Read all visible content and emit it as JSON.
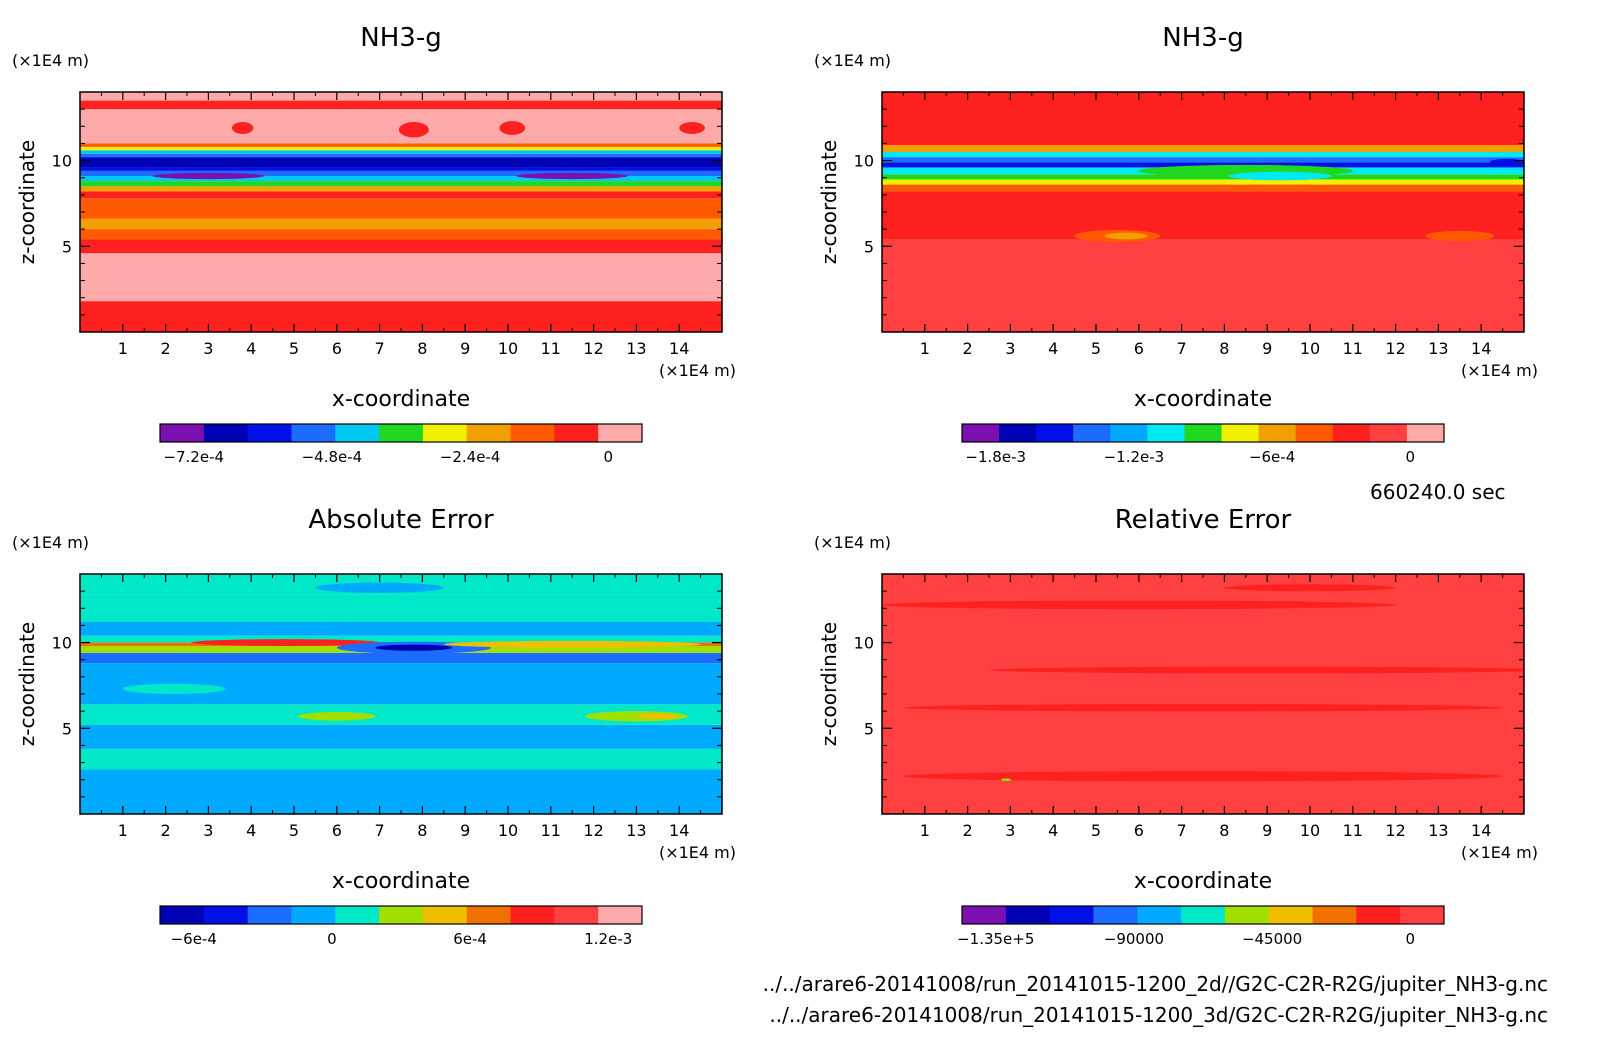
{
  "chart_data": [
    {
      "type": "heatmap",
      "title": "NH3-g",
      "xlabel": "x-coordinate",
      "ylabel": "z-coordinate",
      "x_unit": "(×1E4 m)",
      "z_unit": "(×1E4 m)",
      "xlim": [
        0,
        15
      ],
      "ylim": [
        0,
        14
      ],
      "x_ticks": [
        "1",
        "2",
        "3",
        "4",
        "5",
        "6",
        "7",
        "8",
        "9",
        "10",
        "11",
        "12",
        "13",
        "14"
      ],
      "z_ticks": [
        "5",
        "10"
      ],
      "colorbar_labels": [
        "−7.2e-4",
        "−4.8e-4",
        "−2.4e-4",
        "0"
      ],
      "colorbar_colors": [
        "#7b0fb0",
        "#0000b4",
        "#0010e6",
        "#1c6cff",
        "#00c8f0",
        "#20d820",
        "#f0f000",
        "#f0a000",
        "#ff5a00",
        "#ff2020",
        "#ffaaaa"
      ],
      "bands": [
        {
          "z": [
            0,
            1.8
          ],
          "color": "#ff2020"
        },
        {
          "z": [
            1.8,
            4.6
          ],
          "color": "#ffaaaa"
        },
        {
          "z": [
            4.6,
            5.4
          ],
          "color": "#ff2020"
        },
        {
          "z": [
            5.4,
            6.0
          ],
          "color": "#ff5a00"
        },
        {
          "z": [
            6.0,
            6.6
          ],
          "color": "#f0a000"
        },
        {
          "z": [
            6.6,
            7.8
          ],
          "color": "#ff5a00"
        },
        {
          "z": [
            7.8,
            8.2
          ],
          "color": "#ff2020"
        },
        {
          "z": [
            8.2,
            8.5
          ],
          "color": "#f0a000"
        },
        {
          "z": [
            8.5,
            8.8
          ],
          "color": "#20d820"
        },
        {
          "z": [
            8.8,
            9.1
          ],
          "color": "#00c8f0"
        },
        {
          "z": [
            9.1,
            9.4
          ],
          "color": "#1c6cff"
        },
        {
          "z": [
            9.4,
            9.6
          ],
          "color": "#0010e6"
        },
        {
          "z": [
            9.6,
            10.2
          ],
          "color": "#0000b4"
        },
        {
          "z": [
            10.2,
            10.4
          ],
          "color": "#1c6cff"
        },
        {
          "z": [
            10.4,
            10.6
          ],
          "color": "#00c8f0"
        },
        {
          "z": [
            10.6,
            10.8
          ],
          "color": "#f0f000"
        },
        {
          "z": [
            10.8,
            11.0
          ],
          "color": "#ff5a00"
        },
        {
          "z": [
            11.0,
            13.0
          ],
          "color": "#ffaaaa"
        },
        {
          "z": [
            13.0,
            13.5
          ],
          "color": "#ff2020"
        },
        {
          "z": [
            13.5,
            14.0
          ],
          "color": "#ffaaaa"
        }
      ],
      "blobs": [
        {
          "x": 3.8,
          "z": 11.9,
          "rx": 0.25,
          "rz": 0.35,
          "color": "#ff2020"
        },
        {
          "x": 7.8,
          "z": 11.8,
          "rx": 0.35,
          "rz": 0.45,
          "color": "#ff2020"
        },
        {
          "x": 10.1,
          "z": 11.9,
          "rx": 0.3,
          "rz": 0.4,
          "color": "#ff2020"
        },
        {
          "x": 14.3,
          "z": 11.9,
          "rx": 0.3,
          "rz": 0.35,
          "color": "#ff2020"
        },
        {
          "x": 3.0,
          "z": 9.1,
          "rx": 1.3,
          "rz": 0.18,
          "color": "#7b0fb0"
        },
        {
          "x": 11.5,
          "z": 9.1,
          "rx": 1.3,
          "rz": 0.18,
          "color": "#7b0fb0"
        }
      ]
    },
    {
      "type": "heatmap",
      "title": "NH3-g",
      "xlabel": "x-coordinate",
      "ylabel": "z-coordinate",
      "x_unit": "(×1E4 m)",
      "z_unit": "(×1E4 m)",
      "xlim": [
        0,
        15
      ],
      "ylim": [
        0,
        14
      ],
      "x_ticks": [
        "1",
        "2",
        "3",
        "4",
        "5",
        "6",
        "7",
        "8",
        "9",
        "10",
        "11",
        "12",
        "13",
        "14"
      ],
      "z_ticks": [
        "5",
        "10"
      ],
      "colorbar_labels": [
        "−1.8e-3",
        "−1.2e-3",
        "−6e-4",
        "0"
      ],
      "colorbar_colors": [
        "#7b0fb0",
        "#0000b4",
        "#0010e6",
        "#1c6cff",
        "#00aaff",
        "#00e8f0",
        "#20d820",
        "#f0f000",
        "#f0a000",
        "#ff5a00",
        "#ff2020",
        "#ff4040",
        "#ffaaaa"
      ],
      "bands": [
        {
          "z": [
            0,
            5.4
          ],
          "color": "#ff4040"
        },
        {
          "z": [
            5.4,
            8.2
          ],
          "color": "#ff2020"
        },
        {
          "z": [
            8.2,
            8.6
          ],
          "color": "#ff5a00"
        },
        {
          "z": [
            8.6,
            8.9
          ],
          "color": "#f0f000"
        },
        {
          "z": [
            8.9,
            9.2
          ],
          "color": "#20d820"
        },
        {
          "z": [
            9.2,
            9.6
          ],
          "color": "#00e8f0"
        },
        {
          "z": [
            9.6,
            9.9
          ],
          "color": "#0010e6"
        },
        {
          "z": [
            9.9,
            10.2
          ],
          "color": "#1c6cff"
        },
        {
          "z": [
            10.2,
            10.5
          ],
          "color": "#00e8f0"
        },
        {
          "z": [
            10.5,
            10.9
          ],
          "color": "#f0a000"
        },
        {
          "z": [
            10.9,
            14.0
          ],
          "color": "#ff2020"
        }
      ],
      "blobs": [
        {
          "x": 5.5,
          "z": 5.6,
          "rx": 1.0,
          "rz": 0.35,
          "color": "#ff5a00"
        },
        {
          "x": 5.7,
          "z": 5.6,
          "rx": 0.5,
          "rz": 0.2,
          "color": "#f0a000"
        },
        {
          "x": 13.5,
          "z": 5.6,
          "rx": 0.8,
          "rz": 0.3,
          "color": "#ff5a00"
        },
        {
          "x": 8.5,
          "z": 9.4,
          "rx": 2.5,
          "rz": 0.35,
          "color": "#20d820"
        },
        {
          "x": 9.3,
          "z": 9.1,
          "rx": 1.2,
          "rz": 0.25,
          "color": "#00e8f0"
        },
        {
          "x": 14.6,
          "z": 9.9,
          "rx": 0.4,
          "rz": 0.2,
          "color": "#0010e6"
        }
      ]
    },
    {
      "type": "heatmap",
      "title": "Absolute Error",
      "xlabel": "x-coordinate",
      "ylabel": "z-coordinate",
      "x_unit": "(×1E4 m)",
      "z_unit": "(×1E4 m)",
      "xlim": [
        0,
        15
      ],
      "ylim": [
        0,
        14
      ],
      "x_ticks": [
        "1",
        "2",
        "3",
        "4",
        "5",
        "6",
        "7",
        "8",
        "9",
        "10",
        "11",
        "12",
        "13",
        "14"
      ],
      "z_ticks": [
        "5",
        "10"
      ],
      "colorbar_labels": [
        "−6e-4",
        "0",
        "6e-4",
        "1.2e-3"
      ],
      "colorbar_colors": [
        "#0000b4",
        "#0010e6",
        "#1c6cff",
        "#00aaff",
        "#00e8c8",
        "#a0e000",
        "#f0c000",
        "#f07000",
        "#ff2020",
        "#ff4040",
        "#ffaaaa"
      ],
      "bands": [
        {
          "z": [
            0,
            2.6
          ],
          "color": "#00aaff"
        },
        {
          "z": [
            2.6,
            3.8
          ],
          "color": "#00e8c8"
        },
        {
          "z": [
            3.8,
            5.2
          ],
          "color": "#00aaff"
        },
        {
          "z": [
            5.2,
            6.4
          ],
          "color": "#00e8c8"
        },
        {
          "z": [
            6.4,
            8.8
          ],
          "color": "#00aaff"
        },
        {
          "z": [
            8.8,
            9.4
          ],
          "color": "#1c6cff"
        },
        {
          "z": [
            9.4,
            9.8
          ],
          "color": "#a0e000"
        },
        {
          "z": [
            9.8,
            10.0
          ],
          "color": "#f07000"
        },
        {
          "z": [
            10.0,
            10.4
          ],
          "color": "#00e8c8"
        },
        {
          "z": [
            10.4,
            11.2
          ],
          "color": "#00aaff"
        },
        {
          "z": [
            11.2,
            12.8
          ],
          "color": "#00e8c8"
        },
        {
          "z": [
            12.8,
            14.0
          ],
          "color": "#00e8c8"
        }
      ],
      "blobs": [
        {
          "x": 4.8,
          "z": 10.0,
          "rx": 2.2,
          "rz": 0.2,
          "color": "#ff2020"
        },
        {
          "x": 7.8,
          "z": 9.7,
          "rx": 1.8,
          "rz": 0.35,
          "color": "#1c6cff"
        },
        {
          "x": 7.8,
          "z": 9.7,
          "rx": 0.9,
          "rz": 0.18,
          "color": "#0000b4"
        },
        {
          "x": 11.5,
          "z": 9.9,
          "rx": 3.0,
          "rz": 0.2,
          "color": "#f0c000"
        },
        {
          "x": 6.0,
          "z": 5.7,
          "rx": 0.9,
          "rz": 0.25,
          "color": "#a0e000"
        },
        {
          "x": 13.0,
          "z": 5.7,
          "rx": 1.2,
          "rz": 0.3,
          "color": "#a0e000"
        },
        {
          "x": 13.5,
          "z": 5.7,
          "rx": 0.5,
          "rz": 0.15,
          "color": "#f0c000"
        },
        {
          "x": 2.2,
          "z": 7.3,
          "rx": 1.2,
          "rz": 0.3,
          "color": "#00e8c8"
        },
        {
          "x": 7.0,
          "z": 13.2,
          "rx": 1.5,
          "rz": 0.3,
          "color": "#00aaff"
        }
      ]
    },
    {
      "type": "heatmap",
      "title": "Relative Error",
      "xlabel": "x-coordinate",
      "ylabel": "z-coordinate",
      "x_unit": "(×1E4 m)",
      "z_unit": "(×1E4 m)",
      "xlim": [
        0,
        15
      ],
      "ylim": [
        0,
        14
      ],
      "x_ticks": [
        "1",
        "2",
        "3",
        "4",
        "5",
        "6",
        "7",
        "8",
        "9",
        "10",
        "11",
        "12",
        "13",
        "14"
      ],
      "z_ticks": [
        "5",
        "10"
      ],
      "colorbar_labels": [
        "−1.35e+5",
        "−90000",
        "−45000",
        "0"
      ],
      "colorbar_colors": [
        "#7b0fb0",
        "#0000b4",
        "#0010e6",
        "#1c6cff",
        "#00aaff",
        "#00e8c8",
        "#a0e000",
        "#f0c000",
        "#f07000",
        "#ff2020",
        "#ff4040"
      ],
      "bands": [
        {
          "z": [
            0,
            14.0
          ],
          "color": "#ff4040"
        }
      ],
      "blobs": [
        {
          "x": 6.0,
          "z": 12.2,
          "rx": 6.0,
          "rz": 0.25,
          "color": "#ff2020"
        },
        {
          "x": 9.0,
          "z": 8.4,
          "rx": 6.5,
          "rz": 0.2,
          "color": "#ff2020"
        },
        {
          "x": 7.5,
          "z": 6.2,
          "rx": 7.0,
          "rz": 0.22,
          "color": "#ff2020"
        },
        {
          "x": 7.5,
          "z": 2.2,
          "rx": 7.0,
          "rz": 0.3,
          "color": "#ff2020"
        },
        {
          "x": 10.0,
          "z": 13.2,
          "rx": 2.0,
          "rz": 0.2,
          "color": "#ff2020"
        },
        {
          "x": 2.9,
          "z": 2.0,
          "rx": 0.12,
          "rz": 0.08,
          "color": "#a0e000"
        }
      ]
    }
  ],
  "time_label": "660240.0 sec",
  "file_paths": [
    "../../arare6-20141008/run_20141015-1200_2d//G2C-C2R-R2G/jupiter_NH3-g.nc",
    "../../arare6-20141008/run_20141015-1200_3d/G2C-C2R-R2G/jupiter_NH3-g.nc"
  ]
}
